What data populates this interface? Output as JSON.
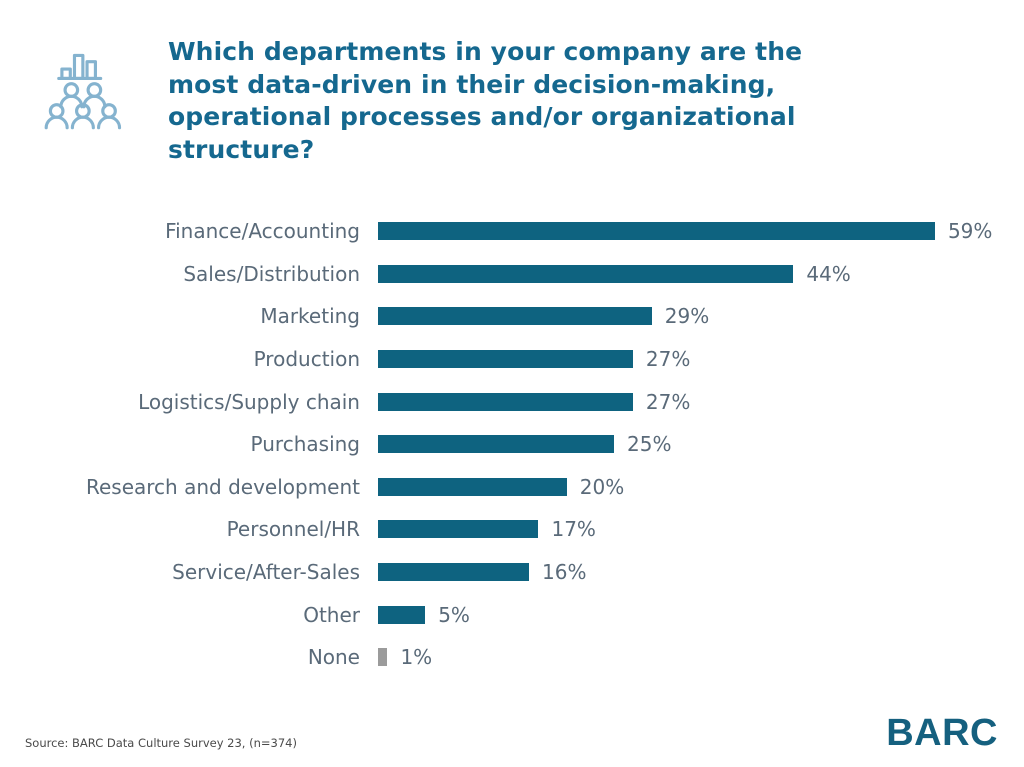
{
  "header": {
    "icon": "audience-bar-chart-icon",
    "title": "Which departments in your company are the most data-driven in their decision-making, operational processes and/or organizational structure?"
  },
  "chart_data": {
    "type": "bar",
    "orientation": "horizontal",
    "title": "Which departments in your company are the most data-driven in their decision-making, operational processes and/or organizational structure?",
    "xlabel": "",
    "ylabel": "",
    "grid": false,
    "legend": "none",
    "xlim": [
      0,
      62
    ],
    "categories": [
      "Finance/Accounting",
      "Sales/Distribution",
      "Marketing",
      "Production",
      "Logistics/Supply chain",
      "Purchasing",
      "Research and development",
      "Personnel/HR",
      "Service/After-Sales",
      "Other",
      "None"
    ],
    "values": [
      59,
      44,
      29,
      27,
      27,
      25,
      20,
      17,
      16,
      5,
      1
    ],
    "value_labels": [
      "59%",
      "44%",
      "29%",
      "27%",
      "27%",
      "25%",
      "20%",
      "17%",
      "16%",
      "5%",
      "1%"
    ],
    "bar_colors": [
      "#0e6380",
      "#0e6380",
      "#0e6380",
      "#0e6380",
      "#0e6380",
      "#0e6380",
      "#0e6380",
      "#0e6380",
      "#0e6380",
      "#0e6380",
      "#9b9b9b"
    ]
  },
  "colors": {
    "title_text": "#15688f",
    "bar_teal": "#0e6380",
    "bar_gray": "#9b9b9b",
    "axis_label_text": "#5a6a79",
    "icon_stroke": "#85b3cf",
    "logo_teal": "#15607f",
    "source_text": "#4a4a4a"
  },
  "footer": {
    "source": "Source: BARC Data Culture Survey 23, (n=374)",
    "logo": "BARC"
  }
}
